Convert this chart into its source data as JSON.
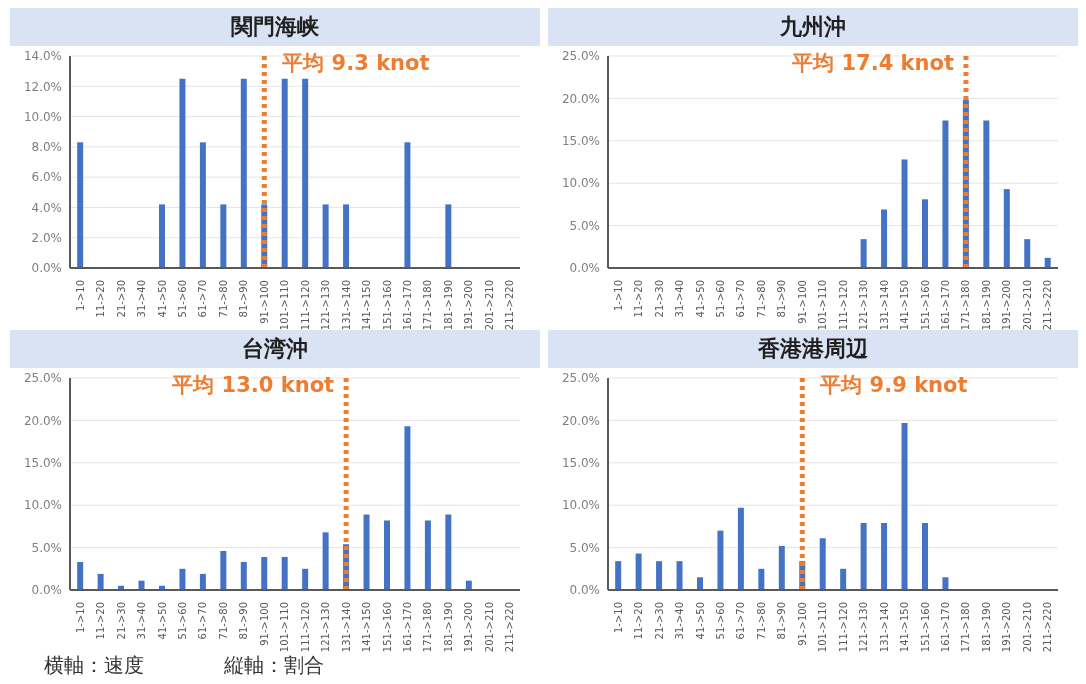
{
  "chart_data": [
    {
      "type": "bar",
      "title": "関門海峡",
      "categories": [
        "1->10",
        "11->20",
        "21->30",
        "31->40",
        "41->50",
        "51->60",
        "61->70",
        "71->80",
        "81->90",
        "91->100",
        "101->110",
        "111->120",
        "121->130",
        "131->140",
        "141->150",
        "151->160",
        "161->170",
        "171->180",
        "181->190",
        "191->200",
        "201->210",
        "211->220"
      ],
      "values": [
        8.3,
        0,
        0,
        0,
        4.2,
        12.5,
        8.3,
        4.2,
        12.5,
        4.2,
        12.5,
        12.5,
        4.2,
        4.2,
        0,
        0,
        8.3,
        0,
        4.2,
        0,
        0,
        0
      ],
      "color": "#4472c4",
      "ylim": [
        0,
        14
      ],
      "yticks": [
        {
          "value": 0,
          "label": "0.0%"
        },
        {
          "value": 2,
          "label": "2.0%"
        },
        {
          "value": 4,
          "label": "4.0%"
        },
        {
          "value": 6,
          "label": "6.0%"
        },
        {
          "value": 8,
          "label": "8.0%"
        },
        {
          "value": 10,
          "label": "10.0%"
        },
        {
          "value": 12,
          "label": "12.0%"
        },
        {
          "value": 14,
          "label": "14.0%"
        }
      ],
      "grid": "y",
      "ref_lines": [
        {
          "axis": "x",
          "value": "91->100",
          "label": "平均 9.3 knot",
          "color": "#ed7d31",
          "line_style": "dotted"
        }
      ]
    },
    {
      "type": "bar",
      "title": "九州沖",
      "categories": [
        "1->10",
        "11->20",
        "21->30",
        "31->40",
        "41->50",
        "51->60",
        "61->70",
        "71->80",
        "81->90",
        "91->100",
        "101->110",
        "111->120",
        "121->130",
        "131->140",
        "141->150",
        "151->160",
        "161->170",
        "171->180",
        "181->190",
        "191->200",
        "201->210",
        "211->220"
      ],
      "values": [
        0,
        0,
        0,
        0,
        0,
        0,
        0,
        0,
        0,
        0,
        0,
        0,
        3.4,
        6.9,
        12.8,
        8.1,
        17.4,
        19.8,
        17.4,
        9.3,
        3.4,
        1.2
      ],
      "color": "#4472c4",
      "ylim": [
        0,
        25
      ],
      "yticks": [
        {
          "value": 0,
          "label": "0.0%"
        },
        {
          "value": 5,
          "label": "5.0%"
        },
        {
          "value": 10,
          "label": "10.0%"
        },
        {
          "value": 15,
          "label": "15.0%"
        },
        {
          "value": 20,
          "label": "20.0%"
        },
        {
          "value": 25,
          "label": "25.0%"
        }
      ],
      "grid": "y",
      "ref_lines": [
        {
          "axis": "x",
          "value": "171->180",
          "label": "平均 17.4 knot",
          "color": "#ed7d31",
          "line_style": "dotted"
        }
      ]
    },
    {
      "type": "bar",
      "title": "台湾沖",
      "categories": [
        "1->10",
        "11->20",
        "21->30",
        "31->40",
        "41->50",
        "51->60",
        "61->70",
        "71->80",
        "81->90",
        "91->100",
        "101->110",
        "111->120",
        "121->130",
        "131->140",
        "141->150",
        "151->160",
        "161->170",
        "171->180",
        "181->190",
        "191->200",
        "201->210",
        "211->220"
      ],
      "values": [
        3.3,
        1.9,
        0.5,
        1.1,
        0.5,
        2.5,
        1.9,
        4.6,
        3.3,
        3.9,
        3.9,
        2.5,
        6.8,
        5.4,
        8.9,
        8.2,
        19.3,
        8.2,
        8.9,
        1.1,
        0,
        0
      ],
      "color": "#4472c4",
      "ylim": [
        0,
        25
      ],
      "yticks": [
        {
          "value": 0,
          "label": "0.0%"
        },
        {
          "value": 5,
          "label": "5.0%"
        },
        {
          "value": 10,
          "label": "10.0%"
        },
        {
          "value": 15,
          "label": "15.0%"
        },
        {
          "value": 20,
          "label": "20.0%"
        },
        {
          "value": 25,
          "label": "25.0%"
        }
      ],
      "grid": "y",
      "ref_lines": [
        {
          "axis": "x",
          "value": "131->140",
          "label": "平均 13.0 knot",
          "color": "#ed7d31",
          "line_style": "dotted"
        }
      ]
    },
    {
      "type": "bar",
      "title": "香港港周辺",
      "categories": [
        "1->10",
        "11->20",
        "21->30",
        "31->40",
        "41->50",
        "51->60",
        "61->70",
        "71->80",
        "81->90",
        "91->100",
        "101->110",
        "111->120",
        "121->130",
        "131->140",
        "141->150",
        "151->160",
        "161->170",
        "171->180",
        "181->190",
        "191->200",
        "201->210",
        "211->220"
      ],
      "values": [
        3.4,
        4.3,
        3.4,
        3.4,
        1.5,
        7.0,
        9.7,
        2.5,
        5.2,
        3.4,
        6.1,
        2.5,
        7.9,
        7.9,
        19.7,
        7.9,
        1.5,
        0,
        0,
        0,
        0,
        0
      ],
      "color": "#4472c4",
      "ylim": [
        0,
        25
      ],
      "yticks": [
        {
          "value": 0,
          "label": "0.0%"
        },
        {
          "value": 5,
          "label": "5.0%"
        },
        {
          "value": 10,
          "label": "10.0%"
        },
        {
          "value": 15,
          "label": "15.0%"
        },
        {
          "value": 20,
          "label": "20.0%"
        },
        {
          "value": 25,
          "label": "25.0%"
        }
      ],
      "grid": "y",
      "ref_lines": [
        {
          "axis": "x",
          "value": "91->100",
          "label": "平均 9.9 knot",
          "color": "#ed7d31",
          "line_style": "dotted"
        }
      ]
    },
    {
      "type": "other",
      "annotations": [
        "横軸：速度",
        "縦軸：割合"
      ]
    }
  ]
}
